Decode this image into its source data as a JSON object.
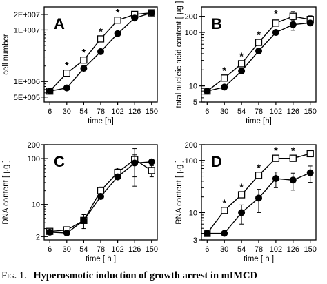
{
  "caption": {
    "label": "Fig. 1.",
    "title": "Hyperosmotic induction of growth arrest in mIMCD"
  },
  "chart_data": [
    {
      "panel": "A",
      "type": "line",
      "scale": "log",
      "xlabel": "time [h]",
      "ylabel": "cell number",
      "x": [
        6,
        30,
        54,
        78,
        102,
        126,
        150
      ],
      "xticks": [
        "6",
        "30",
        "54",
        "78",
        "102",
        "126",
        "150"
      ],
      "ylim": [
        400000,
        28000000
      ],
      "yticks": [
        {
          "value": 500000,
          "label": "5E+005"
        },
        {
          "value": 1000000,
          "label": "1E+006"
        },
        {
          "value": 10000000,
          "label": "1E+007"
        },
        {
          "value": 20000000,
          "label": "2E+007"
        }
      ],
      "series": [
        {
          "marker": "open-square",
          "values": [
            650000,
            1450000,
            2600000,
            6700000,
            15500000,
            20000000,
            21500000
          ]
        },
        {
          "marker": "filled-circle",
          "values": [
            650000,
            750000,
            1800000,
            3800000,
            8500000,
            17000000,
            21500000
          ]
        }
      ],
      "errors": [
        [
          0,
          0,
          0,
          0,
          0,
          0,
          0
        ],
        [
          0,
          0,
          0,
          0,
          0,
          0,
          0
        ]
      ],
      "significance": [
        30,
        54,
        78,
        102
      ],
      "star": "*"
    },
    {
      "panel": "B",
      "type": "line",
      "scale": "log",
      "xlabel": "time [h]",
      "ylabel": "total nucleic acid content [ µg ]",
      "x": [
        6,
        30,
        54,
        78,
        102,
        126,
        150
      ],
      "xticks": [
        "6",
        "30",
        "54",
        "78",
        "102",
        "126",
        "150"
      ],
      "ylim": [
        5,
        300
      ],
      "yticks": [
        {
          "value": 5,
          "label": "5"
        },
        {
          "value": 10,
          "label": "10"
        },
        {
          "value": 100,
          "label": "100"
        },
        {
          "value": 200,
          "label": "200"
        }
      ],
      "series": [
        {
          "marker": "open-square",
          "values": [
            8,
            14,
            26,
            65,
            150,
            200,
            175
          ]
        },
        {
          "marker": "filled-circle",
          "values": [
            8,
            9.5,
            19,
            45,
            100,
            140,
            150
          ]
        }
      ],
      "errors": [
        [
          0,
          0,
          0,
          0,
          10,
          45,
          30
        ],
        [
          0,
          0,
          0,
          0,
          0,
          30,
          0
        ]
      ],
      "significance": [
        30,
        54,
        78,
        102
      ],
      "star": "*"
    },
    {
      "panel": "C",
      "type": "line",
      "scale": "log",
      "xlabel": "time [ h ]",
      "ylabel": "DNA content [ µg ]",
      "x": [
        6,
        30,
        54,
        78,
        102,
        126,
        150
      ],
      "xticks": [
        "6",
        "30",
        "54",
        "78",
        "102",
        "126",
        "150"
      ],
      "ylim": [
        1.7,
        200
      ],
      "yticks": [
        {
          "value": 2,
          "label": "2"
        },
        {
          "value": 10,
          "label": "10"
        },
        {
          "value": 100,
          "label": "100"
        },
        {
          "value": 200,
          "label": "200"
        }
      ],
      "series": [
        {
          "marker": "open-square",
          "values": [
            2.6,
            2.8,
            4.5,
            20,
            50,
            95,
            55
          ]
        },
        {
          "marker": "filled-circle",
          "values": [
            2.5,
            2.4,
            4.5,
            15,
            40,
            80,
            85
          ]
        }
      ],
      "errors": [
        [
          0,
          0,
          0,
          4,
          12,
          70,
          15
        ],
        [
          0,
          0,
          1.5,
          0,
          0,
          40,
          0
        ]
      ],
      "significance": [],
      "star": "*"
    },
    {
      "panel": "D",
      "type": "line",
      "scale": "log",
      "xlabel": "time [ h ]",
      "ylabel": "RNA content [ µg ]",
      "x": [
        6,
        30,
        54,
        78,
        102,
        126,
        150
      ],
      "xticks": [
        "6",
        "30",
        "54",
        "78",
        "102",
        "126",
        "150"
      ],
      "ylim": [
        3,
        200
      ],
      "yticks": [
        {
          "value": 3,
          "label": "3"
        },
        {
          "value": 10,
          "label": "10"
        },
        {
          "value": 100,
          "label": "100"
        },
        {
          "value": 200,
          "label": "200"
        }
      ],
      "series": [
        {
          "marker": "open-square",
          "values": [
            4,
            11,
            22,
            52,
            110,
            110,
            135
          ]
        },
        {
          "marker": "filled-circle",
          "values": [
            4,
            4,
            10,
            19,
            45,
            42,
            58
          ]
        }
      ],
      "errors": [
        [
          0,
          0,
          0,
          0,
          0,
          0,
          15
        ],
        [
          0,
          0,
          4,
          9,
          15,
          15,
          20
        ]
      ],
      "significance": [
        30,
        54,
        78,
        102,
        126
      ],
      "star": "*"
    }
  ]
}
